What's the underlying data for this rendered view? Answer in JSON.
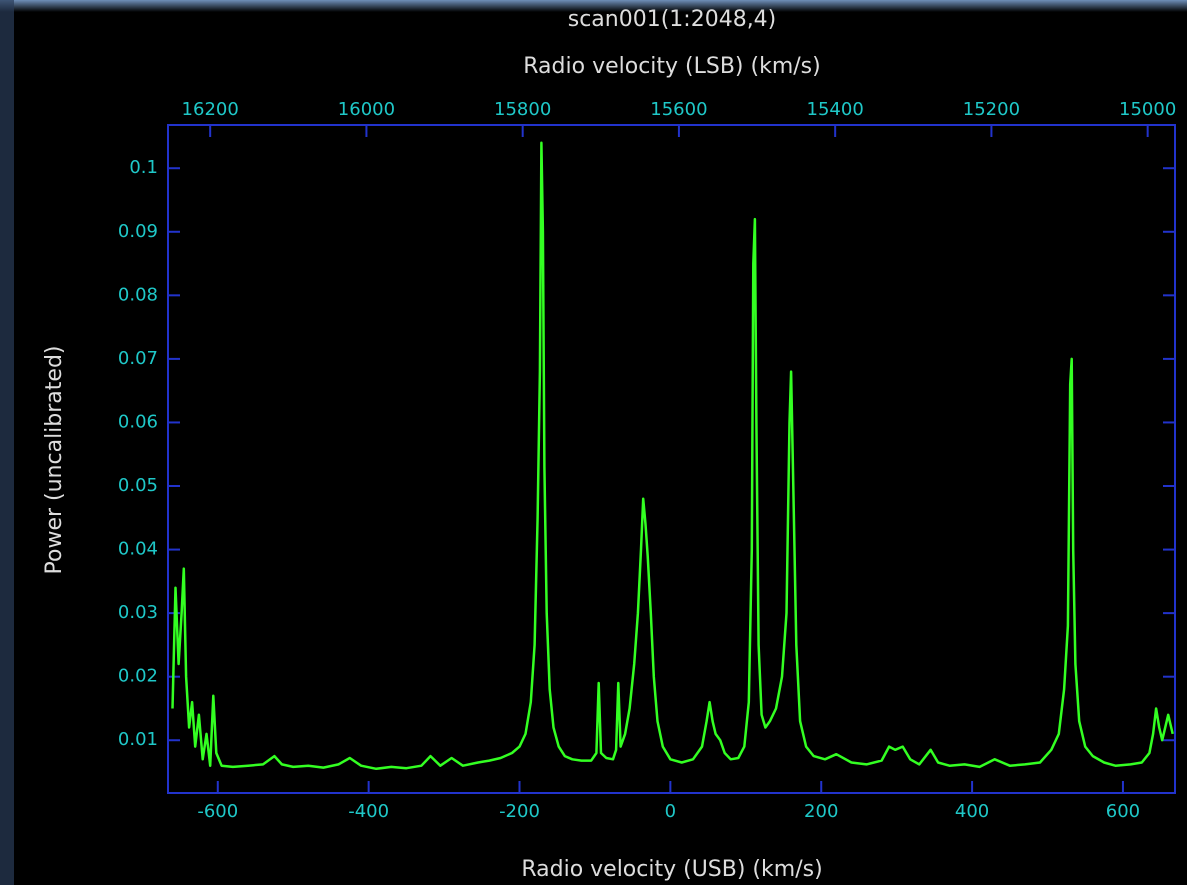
{
  "chart_data": {
    "type": "line",
    "title": "scan001(1:2048,4)",
    "x2_label": "Radio velocity (LSB) (km/s)",
    "x_label": "Radio velocity (USB) (km/s)",
    "y_label": "Power (uncalibrated)",
    "color": "#33ff22",
    "xlim": [
      -666,
      669
    ],
    "xticks": [
      -600,
      -400,
      -200,
      0,
      200,
      400,
      600
    ],
    "x2lim": [
      16254,
      14965
    ],
    "x2ticks": [
      16200,
      16000,
      15800,
      15600,
      15400,
      15200,
      15000
    ],
    "ylim": [
      0.0017,
      0.1068
    ],
    "yticks": [
      0.01,
      0.02,
      0.03,
      0.04,
      0.05,
      0.06,
      0.07,
      0.08,
      0.09,
      0.1
    ],
    "x": [
      -660,
      -656,
      -652,
      -648,
      -645,
      -642,
      -638,
      -634,
      -630,
      -625,
      -620,
      -615,
      -610,
      -606,
      -602,
      -595,
      -580,
      -560,
      -540,
      -525,
      -515,
      -500,
      -480,
      -460,
      -440,
      -425,
      -410,
      -390,
      -370,
      -350,
      -330,
      -318,
      -305,
      -290,
      -275,
      -255,
      -240,
      -225,
      -210,
      -200,
      -192,
      -185,
      -180,
      -176,
      -173,
      -171,
      -169,
      -167,
      -164,
      -160,
      -155,
      -148,
      -140,
      -130,
      -118,
      -105,
      -98,
      -95,
      -92,
      -85,
      -76,
      -72,
      -69,
      -66,
      -60,
      -54,
      -48,
      -43,
      -39,
      -36,
      -33,
      -30,
      -26,
      -22,
      -17,
      -10,
      0,
      15,
      30,
      42,
      48,
      52,
      56,
      60,
      66,
      72,
      80,
      90,
      98,
      104,
      108,
      110,
      112,
      114,
      117,
      121,
      126,
      132,
      140,
      148,
      154,
      158,
      160,
      163,
      167,
      172,
      180,
      190,
      205,
      220,
      240,
      260,
      280,
      290,
      298,
      308,
      318,
      330,
      345,
      355,
      370,
      390,
      410,
      430,
      450,
      470,
      490,
      505,
      515,
      522,
      527,
      530,
      532,
      534,
      537,
      542,
      550,
      560,
      575,
      590,
      610,
      625,
      635,
      640,
      644,
      648,
      652,
      660,
      666
    ],
    "values": [
      0.015,
      0.034,
      0.022,
      0.03,
      0.037,
      0.02,
      0.012,
      0.016,
      0.009,
      0.014,
      0.007,
      0.011,
      0.006,
      0.017,
      0.008,
      0.006,
      0.0058,
      0.006,
      0.0062,
      0.0075,
      0.0062,
      0.0058,
      0.006,
      0.0057,
      0.0062,
      0.0072,
      0.006,
      0.0055,
      0.0058,
      0.0056,
      0.006,
      0.0075,
      0.006,
      0.0072,
      0.006,
      0.0065,
      0.0068,
      0.0072,
      0.008,
      0.009,
      0.011,
      0.016,
      0.025,
      0.045,
      0.068,
      0.104,
      0.09,
      0.053,
      0.03,
      0.018,
      0.012,
      0.009,
      0.0075,
      0.007,
      0.0068,
      0.0068,
      0.008,
      0.019,
      0.008,
      0.0072,
      0.007,
      0.0085,
      0.019,
      0.009,
      0.011,
      0.015,
      0.022,
      0.03,
      0.04,
      0.048,
      0.044,
      0.039,
      0.03,
      0.02,
      0.013,
      0.009,
      0.007,
      0.0065,
      0.007,
      0.009,
      0.013,
      0.016,
      0.013,
      0.011,
      0.01,
      0.008,
      0.007,
      0.0072,
      0.009,
      0.016,
      0.04,
      0.085,
      0.092,
      0.06,
      0.025,
      0.014,
      0.012,
      0.013,
      0.015,
      0.02,
      0.03,
      0.06,
      0.068,
      0.05,
      0.025,
      0.013,
      0.009,
      0.0075,
      0.007,
      0.0078,
      0.0065,
      0.0062,
      0.0068,
      0.009,
      0.0085,
      0.009,
      0.007,
      0.0062,
      0.0085,
      0.0065,
      0.006,
      0.0062,
      0.0058,
      0.007,
      0.006,
      0.0062,
      0.0065,
      0.0085,
      0.011,
      0.018,
      0.028,
      0.066,
      0.07,
      0.04,
      0.022,
      0.013,
      0.009,
      0.0075,
      0.0065,
      0.006,
      0.0062,
      0.0065,
      0.008,
      0.011,
      0.015,
      0.012,
      0.01,
      0.014,
      0.011
    ]
  }
}
